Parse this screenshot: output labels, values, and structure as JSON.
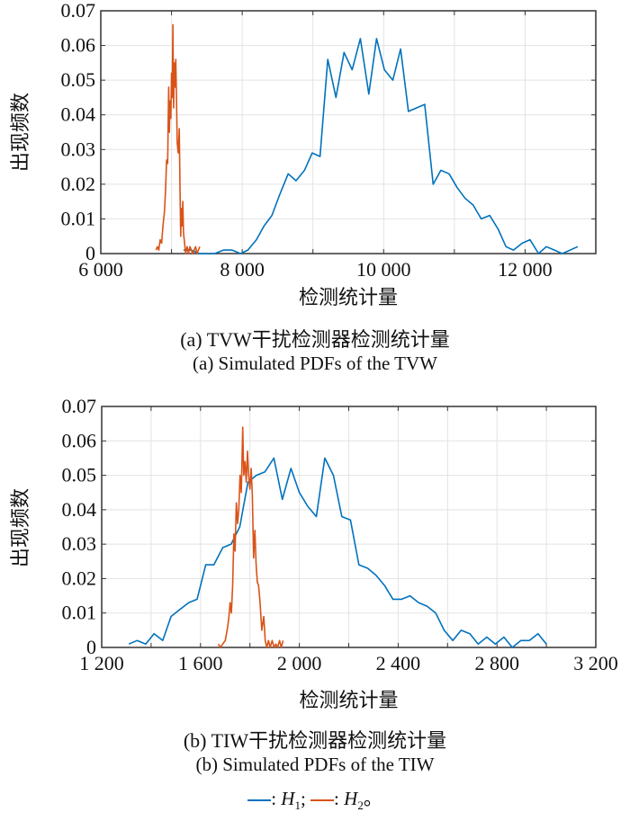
{
  "chart_data": [
    {
      "type": "line",
      "title": "",
      "xlabel": "检测统计量",
      "ylabel": "出现频数",
      "xlim": [
        6000,
        13000
      ],
      "ylim": [
        0,
        0.07
      ],
      "xticks": [
        6000,
        8000,
        10000,
        12000
      ],
      "xtick_labels": [
        "6 000",
        "8 000",
        "10 000",
        "12 000"
      ],
      "xgrid": [
        6000,
        7000,
        8000,
        9000,
        10000,
        11000,
        12000,
        13000
      ],
      "yticks": [
        0,
        0.01,
        0.02,
        0.03,
        0.04,
        0.05,
        0.06,
        0.07
      ],
      "ytick_labels": [
        "0",
        "0.01",
        "0.02",
        "0.03",
        "0.04",
        "0.05",
        "0.06",
        "0.07"
      ],
      "grid": true,
      "caption_cn": "(a) TVW干扰检测器检测统计量",
      "caption_en": "(a) Simulated PDFs of the TVW",
      "series": [
        {
          "name": "H1",
          "color": "#0072BD",
          "x": [
            7170,
            7280,
            7390,
            7610,
            7735,
            7855,
            7975,
            8080,
            8200,
            8310,
            8420,
            8530,
            8650,
            8760,
            8880,
            8990,
            9100,
            9210,
            9325,
            9440,
            9555,
            9670,
            9790,
            9900,
            10010,
            10130,
            10240,
            10350,
            10580,
            10700,
            10810,
            10925,
            11040,
            11150,
            11265,
            11380,
            11500,
            11620,
            11730,
            11835,
            11960,
            12070,
            12190,
            12300,
            12415,
            12525,
            12745
          ],
          "y": [
            0.001,
            0.001,
            0,
            0,
            0.001,
            0.001,
            0,
            0.001,
            0.004,
            0.008,
            0.011,
            0.017,
            0.023,
            0.021,
            0.024,
            0.029,
            0.028,
            0.056,
            0.045,
            0.058,
            0.053,
            0.062,
            0.046,
            0.062,
            0.053,
            0.05,
            0.059,
            0.041,
            0.043,
            0.02,
            0.024,
            0.023,
            0.019,
            0.016,
            0.014,
            0.01,
            0.011,
            0.007,
            0.002,
            0.001,
            0.003,
            0.004,
            0,
            0.002,
            0.001,
            0,
            0.002
          ]
        },
        {
          "name": "H2",
          "color": "#D95319",
          "x": [
            6780,
            6800,
            6820,
            6840,
            6860,
            6880,
            6900,
            6915,
            6930,
            6945,
            6960,
            6970,
            6980,
            6990,
            7000,
            7010,
            7020,
            7030,
            7040,
            7050,
            7060,
            7070,
            7080,
            7095,
            7110,
            7120,
            7130,
            7140,
            7150,
            7160,
            7170,
            7180,
            7200,
            7220,
            7240,
            7260,
            7280,
            7300,
            7320,
            7340,
            7360,
            7380,
            7400
          ],
          "y": [
            0.001,
            0.002,
            0.001,
            0.004,
            0.003,
            0.008,
            0.012,
            0.018,
            0.027,
            0.026,
            0.048,
            0.035,
            0.044,
            0.039,
            0.052,
            0.045,
            0.066,
            0.042,
            0.055,
            0.048,
            0.056,
            0.045,
            0.032,
            0.029,
            0.036,
            0.019,
            0.005,
            0.013,
            0.008,
            0.015,
            0.006,
            0.004,
            0,
            0.002,
            0,
            0.002,
            0.001,
            0,
            0.001,
            0.002,
            0,
            0.001,
            0.002
          ]
        }
      ]
    },
    {
      "type": "line",
      "title": "",
      "xlabel": "检测统计量",
      "ylabel": "出现频数",
      "xlim": [
        1200,
        3200
      ],
      "ylim": [
        0,
        0.07
      ],
      "xticks": [
        1200,
        1600,
        2000,
        2400,
        2800,
        3200
      ],
      "xtick_labels": [
        "1 200",
        "1 600",
        "2 000",
        "2 400",
        "2 800",
        "3 200"
      ],
      "xgrid": [
        1200,
        1400,
        1600,
        1800,
        2000,
        2200,
        2400,
        2600,
        2800,
        3000,
        3200
      ],
      "yticks": [
        0,
        0.01,
        0.02,
        0.03,
        0.04,
        0.05,
        0.06,
        0.07
      ],
      "ytick_labels": [
        "0",
        "0.01",
        "0.02",
        "0.03",
        "0.04",
        "0.05",
        "0.06",
        "0.07"
      ],
      "grid": true,
      "caption_cn": "(b) TIW干扰检测器检测统计量",
      "caption_en": "(b) Simulated PDFs of the TIW",
      "series": [
        {
          "name": "H1",
          "color": "#0072BD",
          "x": [
            1310,
            1343,
            1378,
            1412,
            1447,
            1481,
            1516,
            1552,
            1586,
            1621,
            1654,
            1690,
            1724,
            1759,
            1792,
            1826,
            1861,
            1897,
            1931,
            1966,
            2000,
            2034,
            2069,
            2103,
            2138,
            2172,
            2207,
            2241,
            2276,
            2310,
            2345,
            2379,
            2414,
            2448,
            2483,
            2517,
            2552,
            2586,
            2621,
            2655,
            2690,
            2724,
            2759,
            2793,
            2828,
            2862,
            2897,
            2931,
            2966,
            3000
          ],
          "y": [
            0.001,
            0.002,
            0.001,
            0.004,
            0.002,
            0.009,
            0.011,
            0.013,
            0.014,
            0.024,
            0.024,
            0.029,
            0.03,
            0.035,
            0.048,
            0.05,
            0.051,
            0.055,
            0.043,
            0.052,
            0.045,
            0.041,
            0.038,
            0.055,
            0.05,
            0.038,
            0.037,
            0.024,
            0.023,
            0.021,
            0.018,
            0.014,
            0.014,
            0.015,
            0.013,
            0.012,
            0.01,
            0.005,
            0.002,
            0.005,
            0.004,
            0.001,
            0.003,
            0.001,
            0.003,
            0,
            0.002,
            0.002,
            0.004,
            0.001
          ]
        },
        {
          "name": "H2",
          "color": "#D95319",
          "x": [
            1672,
            1680,
            1690,
            1700,
            1710,
            1715,
            1720,
            1725,
            1730,
            1735,
            1740,
            1745,
            1750,
            1755,
            1760,
            1765,
            1771,
            1775,
            1780,
            1785,
            1790,
            1795,
            1800,
            1805,
            1810,
            1815,
            1820,
            1825,
            1830,
            1835,
            1840,
            1848,
            1856,
            1862,
            1868,
            1875,
            1882,
            1890,
            1898,
            1905,
            1912,
            1920,
            1927,
            1934
          ],
          "y": [
            0.001,
            0,
            0.001,
            0.002,
            0.006,
            0.009,
            0.013,
            0.01,
            0.018,
            0.033,
            0.028,
            0.042,
            0.036,
            0.04,
            0.05,
            0.045,
            0.064,
            0.05,
            0.054,
            0.048,
            0.057,
            0.05,
            0.046,
            0.052,
            0.044,
            0.026,
            0.034,
            0.024,
            0.019,
            0.018,
            0.014,
            0.005,
            0.009,
            0.002,
            0.0,
            0.002,
            0.0,
            0.002,
            0,
            0.001,
            0,
            0.002,
            0,
            0.002
          ]
        }
      ]
    }
  ],
  "legend": {
    "h1_label": "H",
    "h1_sub": "1",
    "h2_label": "H",
    "h2_sub": "2",
    "sep1": ": ",
    "sep2": "; ",
    "end": "。"
  }
}
